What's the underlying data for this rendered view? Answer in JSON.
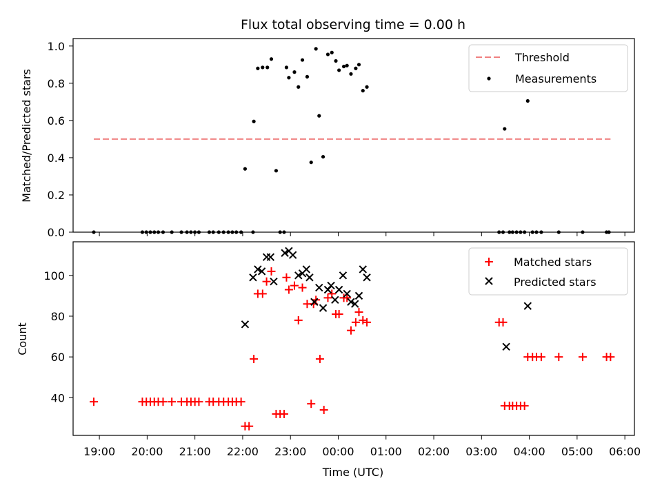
{
  "chart_data": [
    {
      "type": "scatter",
      "title": "Flux total observing time = 0.00 h",
      "ylabel": "Matched/Predicted stars",
      "xlabel": "",
      "xlim": [
        "18:27",
        "06:12"
      ],
      "ylim": [
        0.0,
        1.04
      ],
      "yticks": [
        0.0,
        0.2,
        0.4,
        0.6,
        0.8,
        1.0
      ],
      "ytick_labels": [
        "0.0",
        "0.2",
        "0.4",
        "0.6",
        "0.8",
        "1.0"
      ],
      "legend_position": "top-right",
      "threshold": {
        "name": "Threshold",
        "value": 0.5,
        "x_range": [
          "18:53",
          "05:42"
        ],
        "color": "#f08080"
      },
      "series": [
        {
          "name": "Measurements",
          "color": "#000000",
          "marker": "dot",
          "points": [
            [
              "18:53",
              0.0
            ],
            [
              "19:54",
              0.0
            ],
            [
              "19:59",
              0.0
            ],
            [
              "20:04",
              0.0
            ],
            [
              "20:09",
              0.0
            ],
            [
              "20:14",
              0.0
            ],
            [
              "20:20",
              0.0
            ],
            [
              "20:31",
              0.0
            ],
            [
              "20:43",
              0.0
            ],
            [
              "20:50",
              0.0
            ],
            [
              "20:55",
              0.0
            ],
            [
              "21:00",
              0.0
            ],
            [
              "21:05",
              0.0
            ],
            [
              "21:18",
              0.0
            ],
            [
              "21:23",
              0.0
            ],
            [
              "21:30",
              0.0
            ],
            [
              "21:36",
              0.0
            ],
            [
              "21:42",
              0.0
            ],
            [
              "21:47",
              0.0
            ],
            [
              "21:52",
              0.0
            ],
            [
              "21:58",
              0.0
            ],
            [
              "22:03",
              0.34
            ],
            [
              "22:13",
              0.0
            ],
            [
              "22:14",
              0.595
            ],
            [
              "22:19",
              0.88
            ],
            [
              "22:25",
              0.885
            ],
            [
              "22:31",
              0.885
            ],
            [
              "22:36",
              0.93
            ],
            [
              "22:42",
              0.33
            ],
            [
              "22:47",
              0.0
            ],
            [
              "22:52",
              0.0
            ],
            [
              "22:55",
              0.885
            ],
            [
              "22:58",
              0.83
            ],
            [
              "23:05",
              0.86
            ],
            [
              "23:10",
              0.78
            ],
            [
              "23:15",
              0.925
            ],
            [
              "23:21",
              0.835
            ],
            [
              "23:26",
              0.375
            ],
            [
              "23:32",
              0.985
            ],
            [
              "23:36",
              0.625
            ],
            [
              "23:41",
              0.405
            ],
            [
              "23:47",
              0.955
            ],
            [
              "23:52",
              0.965
            ],
            [
              "23:57",
              0.92
            ],
            [
              "00:01",
              0.87
            ],
            [
              "00:07",
              0.89
            ],
            [
              "00:11",
              0.895
            ],
            [
              "00:16",
              0.85
            ],
            [
              "00:22",
              0.88
            ],
            [
              "00:26",
              0.9
            ],
            [
              "00:31",
              0.76
            ],
            [
              "00:36",
              0.78
            ],
            [
              "03:22",
              0.0
            ],
            [
              "03:27",
              0.0
            ],
            [
              "03:29",
              0.555
            ],
            [
              "03:35",
              0.0
            ],
            [
              "03:39",
              0.0
            ],
            [
              "03:44",
              0.0
            ],
            [
              "03:49",
              0.0
            ],
            [
              "03:54",
              0.0
            ],
            [
              "03:58",
              0.705
            ],
            [
              "04:04",
              0.0
            ],
            [
              "04:09",
              0.0
            ],
            [
              "04:15",
              0.0
            ],
            [
              "04:37",
              0.0
            ],
            [
              "05:07",
              0.0
            ],
            [
              "05:37",
              0.0
            ],
            [
              "05:40",
              0.0
            ]
          ]
        }
      ]
    },
    {
      "type": "scatter",
      "title": "",
      "xlabel": "Time (UTC)",
      "ylabel": "Count",
      "xlim": [
        "18:27",
        "06:12"
      ],
      "ylim": [
        21.5,
        116.5
      ],
      "yticks": [
        40,
        60,
        80,
        100
      ],
      "ytick_labels": [
        "40",
        "60",
        "80",
        "100"
      ],
      "xticks": [
        "19:00",
        "20:00",
        "21:00",
        "22:00",
        "23:00",
        "00:00",
        "01:00",
        "02:00",
        "03:00",
        "04:00",
        "05:00",
        "06:00"
      ],
      "legend_position": "top-right",
      "series": [
        {
          "name": "Matched stars",
          "color": "#ff0000",
          "marker": "plus",
          "points": [
            [
              "18:53",
              38
            ],
            [
              "19:54",
              38
            ],
            [
              "19:59",
              38
            ],
            [
              "20:04",
              38
            ],
            [
              "20:09",
              38
            ],
            [
              "20:14",
              38
            ],
            [
              "20:20",
              38
            ],
            [
              "20:31",
              38
            ],
            [
              "20:43",
              38
            ],
            [
              "20:50",
              38
            ],
            [
              "20:55",
              38
            ],
            [
              "21:00",
              38
            ],
            [
              "21:05",
              38
            ],
            [
              "21:18",
              38
            ],
            [
              "21:23",
              38
            ],
            [
              "21:30",
              38
            ],
            [
              "21:36",
              38
            ],
            [
              "21:42",
              38
            ],
            [
              "21:47",
              38
            ],
            [
              "21:52",
              38
            ],
            [
              "21:58",
              38
            ],
            [
              "22:03",
              26
            ],
            [
              "22:08",
              26
            ],
            [
              "22:14",
              59
            ],
            [
              "22:19",
              91
            ],
            [
              "22:25",
              91
            ],
            [
              "22:30",
              97
            ],
            [
              "22:36",
              102
            ],
            [
              "22:42",
              32
            ],
            [
              "22:47",
              32
            ],
            [
              "22:52",
              32
            ],
            [
              "22:55",
              99
            ],
            [
              "22:58",
              93
            ],
            [
              "23:05",
              95
            ],
            [
              "23:10",
              78
            ],
            [
              "23:15",
              94
            ],
            [
              "23:21",
              86
            ],
            [
              "23:26",
              37
            ],
            [
              "23:29",
              86
            ],
            [
              "23:32",
              88
            ],
            [
              "23:37",
              59
            ],
            [
              "23:42",
              34
            ],
            [
              "23:47",
              89
            ],
            [
              "23:52",
              91
            ],
            [
              "23:57",
              81
            ],
            [
              "00:01",
              81
            ],
            [
              "00:07",
              89
            ],
            [
              "00:11",
              89
            ],
            [
              "00:16",
              73
            ],
            [
              "00:22",
              77
            ],
            [
              "00:26",
              82
            ],
            [
              "00:31",
              78
            ],
            [
              "00:36",
              77
            ],
            [
              "03:22",
              77
            ],
            [
              "03:27",
              77
            ],
            [
              "03:29",
              36
            ],
            [
              "03:35",
              36
            ],
            [
              "03:39",
              36
            ],
            [
              "03:44",
              36
            ],
            [
              "03:49",
              36
            ],
            [
              "03:54",
              36
            ],
            [
              "03:58",
              60
            ],
            [
              "04:04",
              60
            ],
            [
              "04:09",
              60
            ],
            [
              "04:15",
              60
            ],
            [
              "04:37",
              60
            ],
            [
              "05:07",
              60
            ],
            [
              "05:37",
              60
            ],
            [
              "05:42",
              60
            ]
          ]
        },
        {
          "name": "Predicted stars",
          "color": "#000000",
          "marker": "x",
          "points": [
            [
              "22:03",
              76
            ],
            [
              "22:13",
              99
            ],
            [
              "22:19",
              103
            ],
            [
              "22:24",
              102
            ],
            [
              "22:30",
              109
            ],
            [
              "22:35",
              109
            ],
            [
              "22:39",
              97
            ],
            [
              "22:53",
              111
            ],
            [
              "22:58",
              112
            ],
            [
              "23:03",
              110
            ],
            [
              "23:10",
              100
            ],
            [
              "23:15",
              101
            ],
            [
              "23:20",
              103
            ],
            [
              "23:24",
              99
            ],
            [
              "23:30",
              87
            ],
            [
              "23:36",
              94
            ],
            [
              "23:41",
              84
            ],
            [
              "23:47",
              93
            ],
            [
              "23:51",
              95
            ],
            [
              "23:56",
              88
            ],
            [
              "24:01",
              93
            ],
            [
              "24:06",
              100
            ],
            [
              "24:11",
              91
            ],
            [
              "24:16",
              87
            ],
            [
              "24:21",
              86
            ],
            [
              "24:26",
              90
            ],
            [
              "24:31",
              103
            ],
            [
              "24:36",
              99
            ],
            [
              "27:31",
              65
            ],
            [
              "27:58",
              85
            ]
          ]
        }
      ]
    }
  ]
}
